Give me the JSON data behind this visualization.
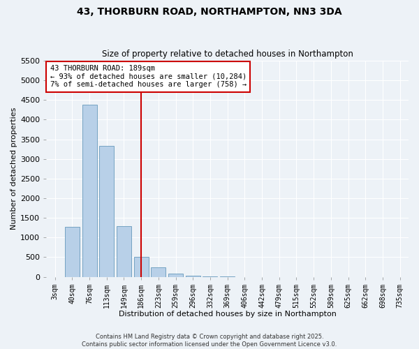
{
  "title": "43, THORBURN ROAD, NORTHAMPTON, NN3 3DA",
  "subtitle": "Size of property relative to detached houses in Northampton",
  "xlabel": "Distribution of detached houses by size in Northampton",
  "ylabel": "Number of detached properties",
  "bar_labels": [
    "3sqm",
    "40sqm",
    "76sqm",
    "113sqm",
    "149sqm",
    "186sqm",
    "223sqm",
    "259sqm",
    "296sqm",
    "332sqm",
    "369sqm",
    "406sqm",
    "442sqm",
    "479sqm",
    "515sqm",
    "552sqm",
    "589sqm",
    "625sqm",
    "662sqm",
    "698sqm",
    "735sqm"
  ],
  "bar_values": [
    0,
    1270,
    4380,
    3330,
    1290,
    510,
    240,
    80,
    20,
    5,
    2,
    0,
    0,
    0,
    0,
    0,
    0,
    0,
    0,
    0,
    0
  ],
  "bar_color": "#b8d0e8",
  "bar_edge_color": "#6699bb",
  "vline_x": 5.0,
  "vline_color": "#cc0000",
  "annotation_line1": "43 THORBURN ROAD: 189sqm",
  "annotation_line2": "← 93% of detached houses are smaller (10,284)",
  "annotation_line3": "7% of semi-detached houses are larger (758) →",
  "ylim": [
    0,
    5500
  ],
  "yticks": [
    0,
    500,
    1000,
    1500,
    2000,
    2500,
    3000,
    3500,
    4000,
    4500,
    5000,
    5500
  ],
  "footer1": "Contains HM Land Registry data © Crown copyright and database right 2025.",
  "footer2": "Contains public sector information licensed under the Open Government Licence v3.0.",
  "bg_color": "#edf2f7",
  "grid_color": "#ffffff"
}
